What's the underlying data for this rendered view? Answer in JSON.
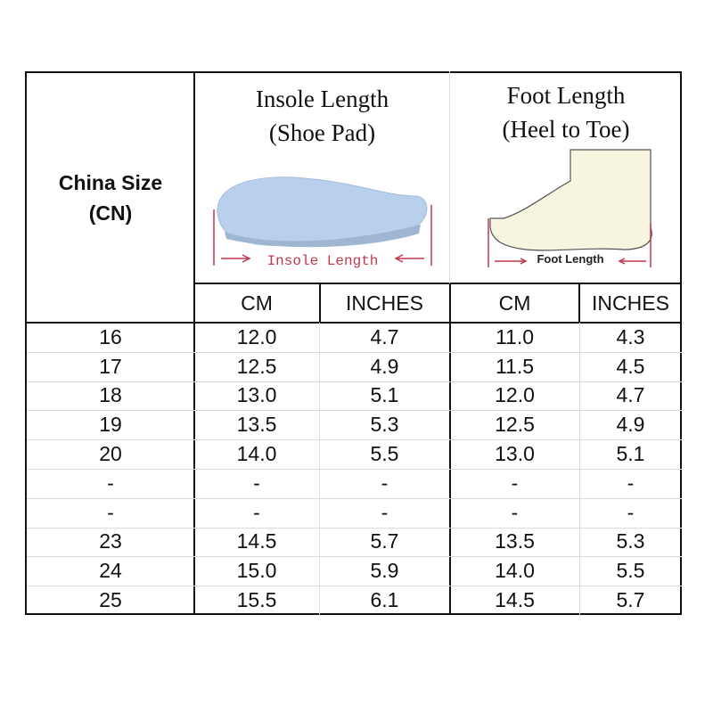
{
  "header": {
    "china_size": [
      "China Size",
      "(CN)"
    ],
    "insole": {
      "title": [
        "Insole Length",
        "(Shoe Pad)"
      ],
      "image_caption": "Insole Length",
      "units": [
        "CM",
        "INCHES"
      ]
    },
    "foot": {
      "title": [
        "Foot Length",
        "(Heel to Toe)"
      ],
      "image_caption": "Foot Length",
      "units": [
        "CM",
        "INCHES"
      ]
    }
  },
  "rows": [
    [
      "16",
      "12.0",
      "4.7",
      "11.0",
      "4.3"
    ],
    [
      "17",
      "12.5",
      "4.9",
      "11.5",
      "4.5"
    ],
    [
      "18",
      "13.0",
      "5.1",
      "12.0",
      "4.7"
    ],
    [
      "19",
      "13.5",
      "5.3",
      "12.5",
      "4.9"
    ],
    [
      "20",
      "14.0",
      "5.5",
      "13.0",
      "5.1"
    ],
    [
      "-",
      "-",
      "-",
      "-",
      "-"
    ],
    [
      "-",
      "-",
      "-",
      "-",
      "-"
    ],
    [
      "23",
      "14.5",
      "5.7",
      "13.5",
      "5.3"
    ],
    [
      "24",
      "15.0",
      "5.9",
      "14.0",
      "5.5"
    ],
    [
      "25",
      "15.5",
      "6.1",
      "14.5",
      "5.7"
    ]
  ],
  "colors": {
    "insole": "#b9d0ec",
    "foot": "#f7f5e0",
    "caption": "#c0394d"
  }
}
